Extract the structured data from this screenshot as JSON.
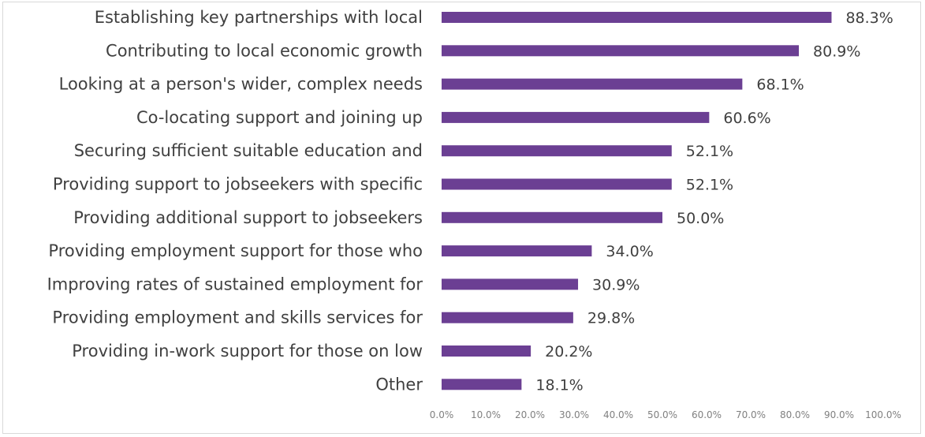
{
  "chart_data": {
    "type": "bar",
    "orientation": "horizontal",
    "title": "",
    "xlabel": "",
    "ylabel": "",
    "categories": [
      "Establishing key partnerships with local",
      "Contributing to local economic growth",
      "Looking at a person's wider, complex needs",
      "Co-locating support and joining up",
      "Securing sufficient suitable education and",
      "Providing support to jobseekers with specific",
      "Providing additional support to jobseekers",
      "Providing employment support for those who",
      "Improving rates of sustained employment for",
      "Providing employment and skills services for",
      "Providing in-work support for those on low",
      "Other"
    ],
    "values": [
      88.3,
      80.9,
      68.1,
      60.6,
      52.1,
      52.1,
      50.0,
      34.0,
      30.9,
      29.8,
      20.2,
      18.1
    ],
    "value_labels": [
      "88.3%",
      "80.9%",
      "68.1%",
      "60.6%",
      "52.1%",
      "52.1%",
      "50.0%",
      "34.0%",
      "30.9%",
      "29.8%",
      "20.2%",
      "18.1%"
    ],
    "xlim": [
      0,
      100
    ],
    "x_ticks": [
      "0.0%",
      "10.0%",
      "20.0%",
      "30.0%",
      "40.0%",
      "50.0%",
      "60.0%",
      "70.0%",
      "80.0%",
      "90.0%",
      "100.0%"
    ],
    "grid": false,
    "legend": "none",
    "bar_color": "#6b3f93"
  }
}
